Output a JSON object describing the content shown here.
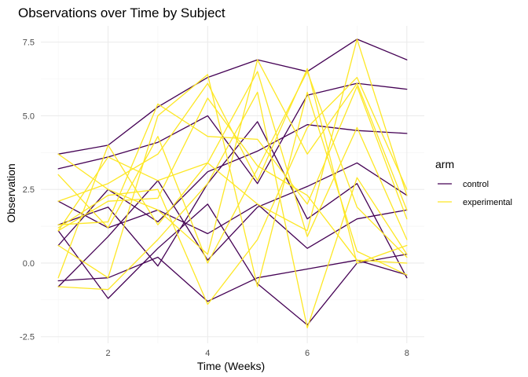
{
  "chart_data": {
    "type": "line",
    "title": "Observations over Time by Subject",
    "xlabel": "Time (Weeks)",
    "ylabel": "Observation",
    "xlim": [
      0.65,
      8.35
    ],
    "ylim": [
      -2.72,
      8.05
    ],
    "x_ticks": [
      2,
      4,
      6,
      8
    ],
    "x_tick_labels": [
      "2",
      "4",
      "6",
      "8"
    ],
    "y_ticks": [
      -2.5,
      0.0,
      2.5,
      5.0,
      7.5
    ],
    "y_tick_labels": [
      "-2.5",
      "0.0",
      "2.5",
      "5.0",
      "7.5"
    ],
    "grid": true,
    "legend": {
      "title": "arm",
      "position": "right",
      "entries": [
        {
          "label": "control",
          "color": "#440154"
        },
        {
          "label": "experimental",
          "color": "#FDE725"
        }
      ]
    },
    "x": [
      1,
      2,
      3,
      4,
      5,
      6,
      7,
      8
    ],
    "series": [
      {
        "arm": "control",
        "color": "#440154",
        "values": [
          2.1,
          1.2,
          1.8,
          1.0,
          2.0,
          0.5,
          1.5,
          1.8
        ]
      },
      {
        "arm": "control",
        "color": "#440154",
        "values": [
          -0.6,
          -0.5,
          0.2,
          -1.3,
          -0.5,
          -0.2,
          0.1,
          -0.4
        ]
      },
      {
        "arm": "control",
        "color": "#440154",
        "values": [
          3.7,
          4.0,
          5.3,
          6.3,
          6.9,
          6.5,
          7.6,
          6.9
        ]
      },
      {
        "arm": "control",
        "color": "#440154",
        "values": [
          1.1,
          -1.2,
          0.5,
          2.0,
          -0.7,
          -2.1,
          0.0,
          0.3
        ]
      },
      {
        "arm": "control",
        "color": "#440154",
        "values": [
          0.6,
          2.5,
          1.4,
          3.1,
          3.8,
          4.7,
          4.5,
          4.4
        ]
      },
      {
        "arm": "control",
        "color": "#440154",
        "values": [
          -0.8,
          0.9,
          2.8,
          0.1,
          1.9,
          2.6,
          3.4,
          2.3
        ]
      },
      {
        "arm": "control",
        "color": "#440154",
        "values": [
          1.3,
          1.9,
          -0.1,
          2.7,
          4.8,
          1.5,
          2.7,
          -0.5
        ]
      },
      {
        "arm": "control",
        "color": "#440154",
        "values": [
          3.2,
          3.6,
          4.1,
          5.0,
          2.7,
          5.7,
          6.1,
          5.9
        ]
      },
      {
        "arm": "experimental",
        "color": "#FDE725",
        "values": [
          3.7,
          2.5,
          1.8,
          0.3,
          6.9,
          3.7,
          6.1,
          1.8
        ]
      },
      {
        "arm": "experimental",
        "color": "#FDE725",
        "values": [
          -0.5,
          4.0,
          1.3,
          3.4,
          2.0,
          1.1,
          7.6,
          2.3
        ]
      },
      {
        "arm": "experimental",
        "color": "#FDE725",
        "values": [
          3.0,
          1.2,
          4.3,
          0.0,
          3.2,
          6.5,
          1.9,
          0.2
        ]
      },
      {
        "arm": "experimental",
        "color": "#FDE725",
        "values": [
          1.3,
          1.4,
          5.4,
          4.3,
          4.2,
          2.0,
          6.0,
          1.5
        ]
      },
      {
        "arm": "experimental",
        "color": "#FDE725",
        "values": [
          0.6,
          -0.5,
          5.0,
          6.4,
          -0.8,
          5.8,
          0.4,
          -0.4
        ]
      },
      {
        "arm": "experimental",
        "color": "#FDE725",
        "values": [
          1.1,
          3.6,
          2.8,
          3.4,
          6.5,
          0.9,
          4.6,
          0.8
        ]
      },
      {
        "arm": "experimental",
        "color": "#FDE725",
        "values": [
          -0.8,
          -0.9,
          0.8,
          2.7,
          5.8,
          -2.2,
          2.9,
          0.3
        ]
      },
      {
        "arm": "experimental",
        "color": "#FDE725",
        "values": [
          2.1,
          2.7,
          3.7,
          6.1,
          2.8,
          6.6,
          0.0,
          0.6
        ]
      },
      {
        "arm": "experimental",
        "color": "#FDE725",
        "values": [
          1.2,
          2.3,
          2.5,
          -1.4,
          0.8,
          4.6,
          6.3,
          2.5
        ]
      },
      {
        "arm": "experimental",
        "color": "#FDE725",
        "values": [
          1.1,
          2.1,
          2.2,
          5.6,
          3.3,
          2.3,
          0.1,
          0.0
        ]
      }
    ]
  }
}
